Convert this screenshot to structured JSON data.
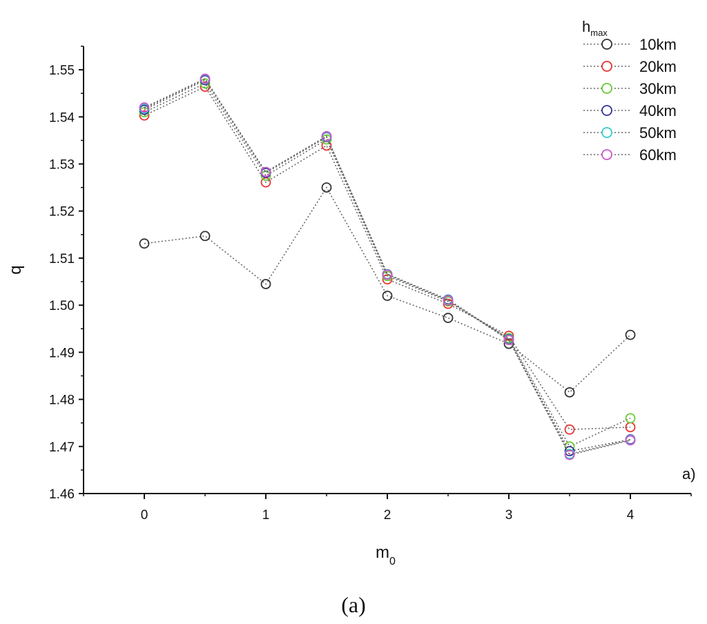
{
  "caption": "(a)",
  "chart_data": {
    "type": "line",
    "title": "",
    "xlabel": "m",
    "xlabel_subscript": "0",
    "ylabel": "q",
    "panel_label": "a)",
    "xlim": [
      -0.5,
      4.5
    ],
    "ylim": [
      1.46,
      1.555
    ],
    "x_ticks": [
      0,
      1,
      2,
      3,
      4
    ],
    "y_ticks": [
      1.46,
      1.47,
      1.48,
      1.49,
      1.5,
      1.51,
      1.52,
      1.53,
      1.54,
      1.55
    ],
    "x_tick_labels": [
      "0",
      "1",
      "2",
      "3",
      "4"
    ],
    "y_tick_labels": [
      "1.46",
      "1.47",
      "1.48",
      "1.49",
      "1.50",
      "1.51",
      "1.52",
      "1.53",
      "1.54",
      "1.55"
    ],
    "legend": {
      "title": "h",
      "title_subscript": "max",
      "placement": "top-right"
    },
    "x": [
      0,
      0.5,
      1,
      1.5,
      2,
      2.5,
      3,
      3.5,
      4
    ],
    "series": [
      {
        "name": "10km",
        "color": "#333333",
        "values": [
          1.5131,
          1.5147,
          1.5045,
          1.525,
          1.502,
          1.4973,
          1.4918,
          1.4815,
          1.4937
        ]
      },
      {
        "name": "20km",
        "color": "#e8322e",
        "values": [
          1.5403,
          1.5464,
          1.5261,
          1.5339,
          1.5055,
          1.5003,
          1.4935,
          1.4736,
          1.4741
        ]
      },
      {
        "name": "30km",
        "color": "#66cc33",
        "values": [
          1.541,
          1.5471,
          1.5275,
          1.5352,
          1.5062,
          1.5008,
          1.493,
          1.47,
          1.476
        ]
      },
      {
        "name": "40km",
        "color": "#333399",
        "values": [
          1.5415,
          1.5478,
          1.5281,
          1.5357,
          1.5066,
          1.5012,
          1.4928,
          1.469,
          1.4715
        ]
      },
      {
        "name": "50km",
        "color": "#33cccc",
        "values": [
          1.5418,
          1.548,
          1.5283,
          1.5358,
          1.5066,
          1.5011,
          1.4927,
          1.4684,
          1.4714
        ]
      },
      {
        "name": "60km",
        "color": "#cc55cc",
        "values": [
          1.542,
          1.5481,
          1.5283,
          1.5359,
          1.5065,
          1.501,
          1.4926,
          1.4682,
          1.4713
        ]
      }
    ]
  }
}
